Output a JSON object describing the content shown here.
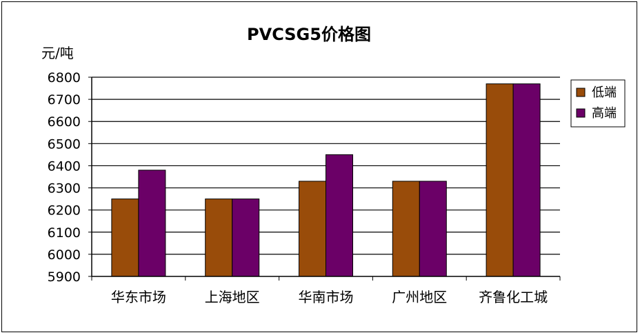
{
  "chart_data": {
    "type": "bar",
    "title": "PVCSG5价格图",
    "ylabel": "元/吨",
    "xlabel": "",
    "categories": [
      "华东市场",
      "上海地区",
      "华南市场",
      "广州地区",
      "齐鲁化工城"
    ],
    "series": [
      {
        "name": "低端",
        "values": [
          6250,
          6250,
          6330,
          6330,
          6770
        ],
        "color": "#994C0A"
      },
      {
        "name": "高端",
        "values": [
          6380,
          6250,
          6450,
          6330,
          6770
        ],
        "color": "#6B0067"
      }
    ],
    "ylim": [
      5900,
      6800
    ],
    "yticks": [
      5900,
      6000,
      6100,
      6200,
      6300,
      6400,
      6500,
      6600,
      6700,
      6800
    ],
    "grid": true,
    "legend": "right"
  }
}
